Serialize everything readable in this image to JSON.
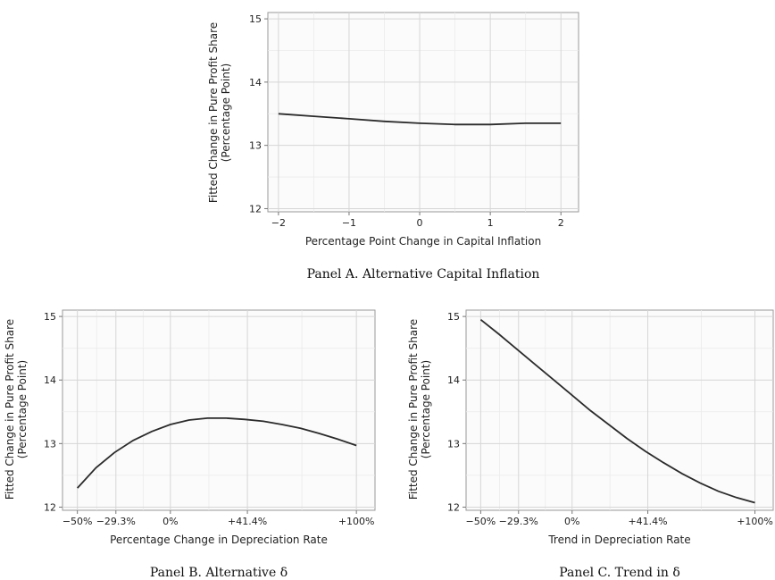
{
  "chart_data": [
    {
      "type": "line",
      "caption": "Panel A. Alternative Capital Inflation",
      "xlabel": "Percentage Point Change in Capital Inflation",
      "ylabel_line1": "Fitted Change in Pure Profit Share",
      "ylabel_line2": "(Percentage Point)",
      "xlim": [
        -2.15,
        2.25
      ],
      "ylim": [
        11.95,
        15.1
      ],
      "x_ticks": [
        {
          "value": -2,
          "label": "−2"
        },
        {
          "value": -1,
          "label": "−1"
        },
        {
          "value": 0,
          "label": "0"
        },
        {
          "value": 1,
          "label": "1"
        },
        {
          "value": 2,
          "label": "2"
        }
      ],
      "y_ticks": [
        {
          "value": 12,
          "label": "12"
        },
        {
          "value": 13,
          "label": "13"
        },
        {
          "value": 14,
          "label": "14"
        },
        {
          "value": 15,
          "label": "15"
        }
      ],
      "x": [
        -2,
        -1.5,
        -1,
        -0.5,
        0,
        0.5,
        1,
        1.5,
        2
      ],
      "y": [
        13.5,
        13.46,
        13.42,
        13.38,
        13.35,
        13.33,
        13.33,
        13.35,
        13.35
      ]
    },
    {
      "type": "line",
      "caption": "Panel B. Alternative δ",
      "xlabel": "Percentage Change in Depreciation Rate",
      "ylabel_line1": "Fitted Change in Pure Profit Share",
      "ylabel_line2": "(Percentage Point)",
      "xlim": [
        -0.58,
        1.1
      ],
      "ylim": [
        11.95,
        15.1
      ],
      "x_ticks": [
        {
          "value": -0.5,
          "label": "−50%"
        },
        {
          "value": -0.293,
          "label": "−29.3%"
        },
        {
          "value": 0,
          "label": "0%"
        },
        {
          "value": 0.414,
          "label": "+41.4%"
        },
        {
          "value": 1,
          "label": "+100%"
        }
      ],
      "y_ticks": [
        {
          "value": 12,
          "label": "12"
        },
        {
          "value": 13,
          "label": "13"
        },
        {
          "value": 14,
          "label": "14"
        },
        {
          "value": 15,
          "label": "15"
        }
      ],
      "x": [
        -0.5,
        -0.4,
        -0.3,
        -0.2,
        -0.1,
        0,
        0.1,
        0.2,
        0.3,
        0.4,
        0.5,
        0.6,
        0.7,
        0.8,
        0.9,
        1.0
      ],
      "y": [
        12.3,
        12.62,
        12.86,
        13.05,
        13.19,
        13.3,
        13.37,
        13.4,
        13.4,
        13.38,
        13.35,
        13.3,
        13.24,
        13.16,
        13.07,
        12.97
      ]
    },
    {
      "type": "line",
      "caption": "Panel C. Trend in δ",
      "xlabel": "Trend in Depreciation Rate",
      "ylabel_line1": "Fitted Change in Pure Profit Share",
      "ylabel_line2": "(Percentage Point)",
      "xlim": [
        -0.58,
        1.1
      ],
      "ylim": [
        11.95,
        15.1
      ],
      "x_ticks": [
        {
          "value": -0.5,
          "label": "−50%"
        },
        {
          "value": -0.293,
          "label": "−29.3%"
        },
        {
          "value": 0,
          "label": "0%"
        },
        {
          "value": 0.414,
          "label": "+41.4%"
        },
        {
          "value": 1,
          "label": "+100%"
        }
      ],
      "y_ticks": [
        {
          "value": 12,
          "label": "12"
        },
        {
          "value": 13,
          "label": "13"
        },
        {
          "value": 14,
          "label": "14"
        },
        {
          "value": 15,
          "label": "15"
        }
      ],
      "x": [
        -0.5,
        -0.4,
        -0.3,
        -0.2,
        -0.1,
        0,
        0.1,
        0.2,
        0.3,
        0.4,
        0.5,
        0.6,
        0.7,
        0.8,
        0.9,
        1.0
      ],
      "y": [
        14.95,
        14.72,
        14.48,
        14.24,
        14.0,
        13.76,
        13.52,
        13.3,
        13.08,
        12.88,
        12.7,
        12.53,
        12.38,
        12.25,
        12.15,
        12.07
      ]
    }
  ]
}
